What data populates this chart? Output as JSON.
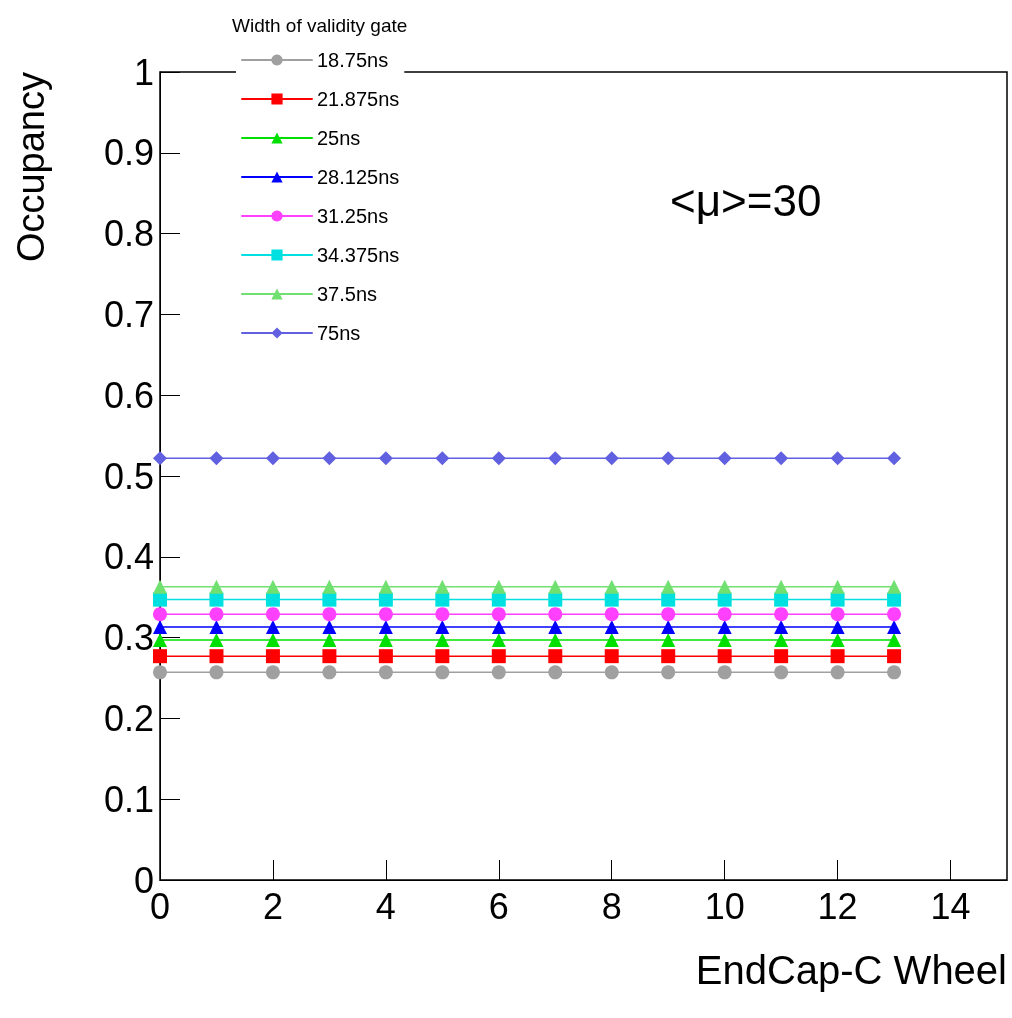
{
  "chart_data": {
    "type": "line",
    "xlabel": "EndCap-C Wheel",
    "ylabel": "Occupancy",
    "legend_title": "Width of validity gate",
    "annotations": [
      "<μ>=30"
    ],
    "x": [
      0,
      1,
      2,
      3,
      4,
      5,
      6,
      7,
      8,
      9,
      10,
      11,
      12,
      13
    ],
    "xlim": [
      0,
      15
    ],
    "xticks": [
      0,
      2,
      4,
      6,
      8,
      10,
      12,
      14
    ],
    "ylim": [
      0,
      1
    ],
    "yticks": [
      0,
      0.1,
      0.2,
      0.3,
      0.4,
      0.5,
      0.6,
      0.7,
      0.8,
      0.9,
      1
    ],
    "grid": false,
    "legend": "top left",
    "series": [
      {
        "name": "18.75ns",
        "color": "#a0a0a0",
        "marker": "circle",
        "values": [
          0.257,
          0.257,
          0.257,
          0.257,
          0.257,
          0.257,
          0.257,
          0.257,
          0.257,
          0.257,
          0.257,
          0.257,
          0.257,
          0.257
        ]
      },
      {
        "name": "21.875ns",
        "color": "#ff0000",
        "marker": "square",
        "values": [
          0.277,
          0.277,
          0.277,
          0.277,
          0.277,
          0.277,
          0.277,
          0.277,
          0.277,
          0.277,
          0.277,
          0.277,
          0.277,
          0.277
        ]
      },
      {
        "name": "25ns",
        "color": "#00e000",
        "marker": "triangle",
        "values": [
          0.297,
          0.297,
          0.297,
          0.297,
          0.297,
          0.297,
          0.297,
          0.297,
          0.297,
          0.297,
          0.297,
          0.297,
          0.297,
          0.297
        ]
      },
      {
        "name": "28.125ns",
        "color": "#0000ff",
        "marker": "triangle",
        "values": [
          0.313,
          0.313,
          0.313,
          0.313,
          0.313,
          0.313,
          0.313,
          0.313,
          0.313,
          0.313,
          0.313,
          0.313,
          0.313,
          0.313
        ]
      },
      {
        "name": "31.25ns",
        "color": "#ff40ff",
        "marker": "circle",
        "values": [
          0.329,
          0.329,
          0.329,
          0.329,
          0.329,
          0.329,
          0.329,
          0.329,
          0.329,
          0.329,
          0.329,
          0.329,
          0.329,
          0.329
        ]
      },
      {
        "name": "34.375ns",
        "color": "#00e0e0",
        "marker": "square",
        "values": [
          0.347,
          0.347,
          0.347,
          0.347,
          0.347,
          0.347,
          0.347,
          0.347,
          0.347,
          0.347,
          0.347,
          0.347,
          0.347,
          0.347
        ]
      },
      {
        "name": "37.5ns",
        "color": "#70e070",
        "marker": "triangle",
        "values": [
          0.363,
          0.363,
          0.363,
          0.363,
          0.363,
          0.363,
          0.363,
          0.363,
          0.363,
          0.363,
          0.363,
          0.363,
          0.363,
          0.363
        ]
      },
      {
        "name": "75ns",
        "color": "#6060e0",
        "marker": "diamond",
        "values": [
          0.522,
          0.522,
          0.522,
          0.522,
          0.522,
          0.522,
          0.522,
          0.522,
          0.522,
          0.522,
          0.522,
          0.522,
          0.522,
          0.522
        ]
      }
    ]
  }
}
